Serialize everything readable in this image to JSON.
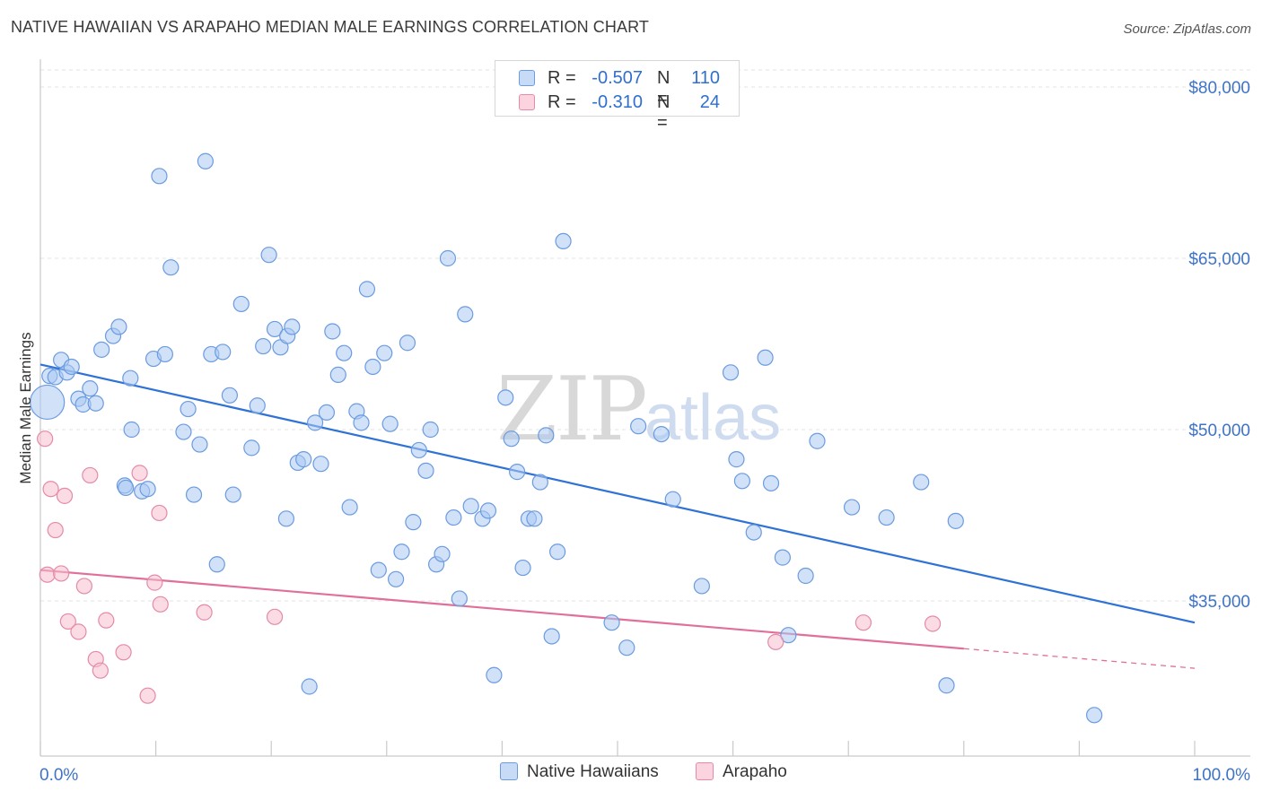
{
  "title": "NATIVE HAWAIIAN VS ARAPAHO MEDIAN MALE EARNINGS CORRELATION CHART",
  "source": "Source: ZipAtlas.com",
  "watermark": {
    "zip": "ZIP",
    "atlas": "atlas"
  },
  "legend_top": [
    {
      "r_label": "R = ",
      "r_value": "-0.507",
      "n_label": "N = ",
      "n_value": "110",
      "color": "#a9c8f2",
      "stroke": "#6b9be0"
    },
    {
      "r_label": "R = ",
      "r_value": "-0.310",
      "n_label": "N = ",
      "n_value": "24",
      "color": "#f7c0d0",
      "stroke": "#e58aa7"
    }
  ],
  "legend_bottom": [
    {
      "label": "Native Hawaiians",
      "color": "#c7dbf6",
      "stroke": "#6b9be0"
    },
    {
      "label": "Arapaho",
      "color": "#fbd4df",
      "stroke": "#e58aa7"
    }
  ],
  "chart_data": {
    "type": "scatter",
    "title": "NATIVE HAWAIIAN VS ARAPAHO MEDIAN MALE EARNINGS CORRELATION CHART",
    "xlabel": "",
    "ylabel": "Median Male Earnings",
    "xlim": [
      0,
      100
    ],
    "ylim": [
      22000,
      83000
    ],
    "x_tick_labels": [
      {
        "value": 0,
        "label": "0.0%"
      },
      {
        "value": 100,
        "label": "100.0%"
      }
    ],
    "y_tick_labels": [
      {
        "value": 80000,
        "label": "$80,000"
      },
      {
        "value": 65000,
        "label": "$65,000"
      },
      {
        "value": 50000,
        "label": "$50,000"
      },
      {
        "value": 35000,
        "label": "$35,000"
      }
    ],
    "grid": true,
    "legend_position": "bottom",
    "series": [
      {
        "name": "Native Hawaiians",
        "color": "#a9c8f2",
        "stroke": "#6b9be0",
        "line_color": "#2f72d6",
        "trend": {
          "x0": 0,
          "y0": 55700,
          "x1": 100,
          "y1": 33100,
          "solid_to": 100
        },
        "points": [
          [
            0.6,
            52400
          ],
          [
            0.8,
            54700
          ],
          [
            1.3,
            54600
          ],
          [
            1.8,
            56100
          ],
          [
            2.3,
            55000
          ],
          [
            2.7,
            55500
          ],
          [
            3.3,
            52700
          ],
          [
            3.7,
            52200
          ],
          [
            4.3,
            53600
          ],
          [
            4.8,
            52300
          ],
          [
            5.3,
            57000
          ],
          [
            6.3,
            58200
          ],
          [
            6.8,
            59000
          ],
          [
            7.3,
            45100
          ],
          [
            7.8,
            54500
          ],
          [
            7.4,
            44900
          ],
          [
            7.9,
            50000
          ],
          [
            8.8,
            44600
          ],
          [
            9.3,
            44800
          ],
          [
            9.8,
            56200
          ],
          [
            10.3,
            72200
          ],
          [
            10.8,
            56600
          ],
          [
            11.3,
            64200
          ],
          [
            12.4,
            49800
          ],
          [
            12.8,
            51800
          ],
          [
            13.3,
            44300
          ],
          [
            13.8,
            48700
          ],
          [
            14.3,
            73500
          ],
          [
            14.8,
            56600
          ],
          [
            15.3,
            38200
          ],
          [
            15.8,
            56800
          ],
          [
            16.4,
            53000
          ],
          [
            16.7,
            44300
          ],
          [
            17.4,
            61000
          ],
          [
            18.3,
            48400
          ],
          [
            18.8,
            52100
          ],
          [
            19.3,
            57300
          ],
          [
            19.8,
            65300
          ],
          [
            20.3,
            58800
          ],
          [
            20.8,
            57200
          ],
          [
            21.4,
            58200
          ],
          [
            21.8,
            59000
          ],
          [
            21.3,
            42200
          ],
          [
            22.3,
            47100
          ],
          [
            22.8,
            47400
          ],
          [
            23.3,
            27500
          ],
          [
            23.8,
            50600
          ],
          [
            24.3,
            47000
          ],
          [
            24.8,
            51500
          ],
          [
            25.3,
            58600
          ],
          [
            25.8,
            54800
          ],
          [
            26.3,
            56700
          ],
          [
            26.8,
            43200
          ],
          [
            27.4,
            51600
          ],
          [
            27.8,
            50600
          ],
          [
            28.3,
            62300
          ],
          [
            28.8,
            55500
          ],
          [
            29.3,
            37700
          ],
          [
            29.8,
            56700
          ],
          [
            30.3,
            50500
          ],
          [
            30.8,
            36900
          ],
          [
            31.3,
            39300
          ],
          [
            31.8,
            57600
          ],
          [
            32.3,
            41900
          ],
          [
            32.8,
            48200
          ],
          [
            33.4,
            46400
          ],
          [
            33.8,
            50000
          ],
          [
            34.3,
            38200
          ],
          [
            34.8,
            39100
          ],
          [
            35.3,
            65000
          ],
          [
            35.8,
            42300
          ],
          [
            36.3,
            35200
          ],
          [
            36.8,
            60100
          ],
          [
            37.3,
            43300
          ],
          [
            38.3,
            42200
          ],
          [
            38.8,
            42900
          ],
          [
            39.3,
            28500
          ],
          [
            40.3,
            52800
          ],
          [
            40.8,
            49200
          ],
          [
            41.3,
            46300
          ],
          [
            41.8,
            37900
          ],
          [
            42.3,
            42200
          ],
          [
            42.8,
            42200
          ],
          [
            43.3,
            45400
          ],
          [
            43.8,
            49500
          ],
          [
            44.3,
            31900
          ],
          [
            44.8,
            39300
          ],
          [
            45.3,
            66500
          ],
          [
            49.5,
            33100
          ],
          [
            50.8,
            30900
          ],
          [
            51.8,
            50300
          ],
          [
            53.8,
            49600
          ],
          [
            54.8,
            43900
          ],
          [
            57.3,
            36300
          ],
          [
            59.8,
            55000
          ],
          [
            60.3,
            47400
          ],
          [
            60.8,
            45500
          ],
          [
            61.8,
            41000
          ],
          [
            62.8,
            56300
          ],
          [
            63.3,
            45300
          ],
          [
            64.3,
            38800
          ],
          [
            64.8,
            32000
          ],
          [
            66.3,
            37200
          ],
          [
            67.3,
            49000
          ],
          [
            70.3,
            43200
          ],
          [
            73.3,
            42300
          ],
          [
            76.3,
            45400
          ],
          [
            78.5,
            27600
          ],
          [
            79.3,
            42000
          ],
          [
            91.3,
            25000
          ]
        ],
        "point_sizes": {
          "0.6,52400": "large"
        }
      },
      {
        "name": "Arapaho",
        "color": "#f7c0d0",
        "stroke": "#e58aa7",
        "line_color": "#e0709a",
        "trend": {
          "x0": 0,
          "y0": 37700,
          "x1": 100,
          "y1": 29100,
          "solid_to": 80
        },
        "points": [
          [
            0.4,
            49200
          ],
          [
            0.6,
            37300
          ],
          [
            0.9,
            44800
          ],
          [
            1.3,
            41200
          ],
          [
            1.8,
            37400
          ],
          [
            2.1,
            44200
          ],
          [
            2.4,
            33200
          ],
          [
            3.3,
            32300
          ],
          [
            3.8,
            36300
          ],
          [
            4.3,
            46000
          ],
          [
            4.8,
            29900
          ],
          [
            5.2,
            28900
          ],
          [
            5.7,
            33300
          ],
          [
            7.2,
            30500
          ],
          [
            8.6,
            46200
          ],
          [
            9.3,
            26700
          ],
          [
            9.9,
            36600
          ],
          [
            10.3,
            42700
          ],
          [
            10.4,
            34700
          ],
          [
            14.2,
            34000
          ],
          [
            20.3,
            33600
          ],
          [
            63.7,
            31400
          ],
          [
            71.3,
            33100
          ],
          [
            77.3,
            33000
          ]
        ]
      }
    ]
  }
}
